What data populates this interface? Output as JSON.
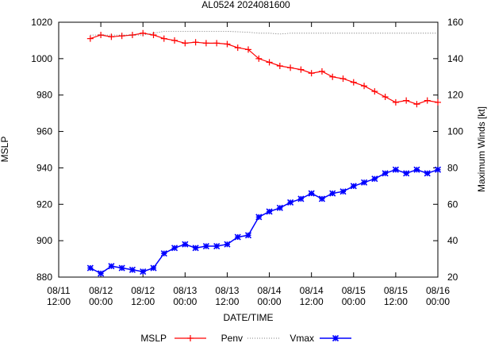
{
  "chart_data": {
    "type": "line",
    "title": "AL0524 2024081600",
    "xlabel": "DATE/TIME",
    "ylabel_left": "MSLP",
    "ylabel_right": "Maximum Winds [kt]",
    "x_range_hours": [
      0,
      108
    ],
    "ylim_left": [
      880,
      1020
    ],
    "ylim_right": [
      20,
      160
    ],
    "x_ticks": [
      {
        "hour": 0,
        "line1": "08/11",
        "line2": "12:00"
      },
      {
        "hour": 12,
        "line1": "08/12",
        "line2": "00:00"
      },
      {
        "hour": 24,
        "line1": "08/12",
        "line2": "12:00"
      },
      {
        "hour": 36,
        "line1": "08/13",
        "line2": "00:00"
      },
      {
        "hour": 48,
        "line1": "08/13",
        "line2": "12:00"
      },
      {
        "hour": 60,
        "line1": "08/14",
        "line2": "00:00"
      },
      {
        "hour": 72,
        "line1": "08/14",
        "line2": "12:00"
      },
      {
        "hour": 84,
        "line1": "08/15",
        "line2": "00:00"
      },
      {
        "hour": 96,
        "line1": "08/15",
        "line2": "12:00"
      },
      {
        "hour": 108,
        "line1": "08/16",
        "line2": "00:00"
      }
    ],
    "y_ticks_left": [
      880,
      900,
      920,
      940,
      960,
      980,
      1000,
      1020
    ],
    "y_ticks_right": [
      20,
      40,
      60,
      80,
      100,
      120,
      140,
      160
    ],
    "legend": {
      "placement": "bottom",
      "mslp_label": "MSLP",
      "penv_label": "Penv",
      "vmax_label": "Vmax"
    },
    "series": [
      {
        "name": "MSLP",
        "color": "#ff0000",
        "marker": "plus",
        "axis": "left",
        "x": [
          9,
          12,
          15,
          18,
          21,
          24,
          27,
          30,
          33,
          36,
          39,
          42,
          45,
          48,
          51,
          54,
          57,
          60,
          63,
          66,
          69,
          72,
          75,
          78,
          81,
          84,
          87,
          90,
          93,
          96,
          99,
          102,
          105,
          108
        ],
        "values": [
          1011,
          1013,
          1012,
          1012.5,
          1013,
          1014,
          1013,
          1011,
          1010,
          1008.5,
          1009,
          1008.5,
          1008.5,
          1008,
          1006,
          1005,
          1000,
          998,
          996,
          995,
          994,
          992,
          993,
          990,
          989,
          987,
          985,
          982,
          979,
          976,
          977,
          975,
          977,
          976
        ]
      },
      {
        "name": "Penv",
        "color": "#000000",
        "marker": "none",
        "line_style": "dotted",
        "axis": "left",
        "x": [
          9,
          24,
          27,
          30,
          48,
          54,
          57,
          60,
          63,
          66,
          69,
          72,
          108
        ],
        "values": [
          1013,
          1013,
          1014,
          1015,
          1015,
          1014.5,
          1014,
          1014,
          1013.5,
          1014,
          1014,
          1014,
          1014
        ]
      },
      {
        "name": "Vmax",
        "color": "#0000ff",
        "marker": "asterisk",
        "axis": "right",
        "x": [
          9,
          12,
          15,
          18,
          21,
          24,
          27,
          30,
          33,
          36,
          39,
          42,
          45,
          48,
          51,
          54,
          57,
          60,
          63,
          66,
          69,
          72,
          75,
          78,
          81,
          84,
          87,
          90,
          93,
          96,
          99,
          102,
          105,
          108
        ],
        "values": [
          25,
          22,
          26,
          25,
          24,
          23,
          25,
          33,
          36,
          38,
          36,
          37,
          37,
          38,
          42,
          43,
          53,
          56,
          58,
          61,
          63,
          66,
          63,
          66,
          67,
          70,
          72,
          74,
          77,
          79,
          77,
          79,
          77,
          79
        ]
      }
    ]
  }
}
